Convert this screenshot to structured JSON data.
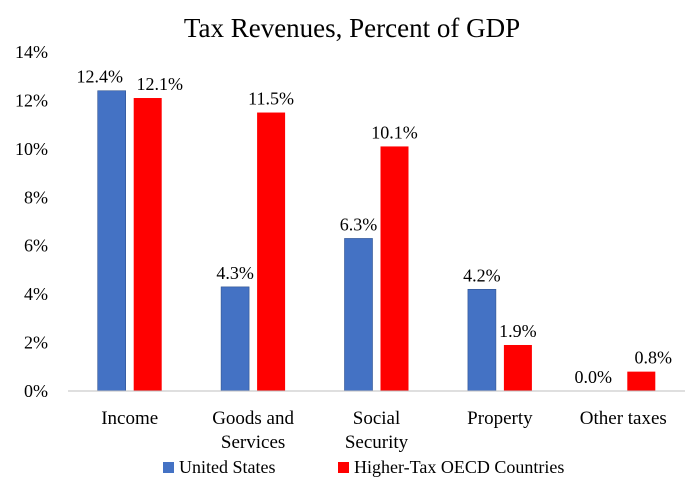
{
  "chart_data": {
    "type": "bar",
    "title": "Tax Revenues, Percent of GDP",
    "xlabel": "",
    "ylabel": "",
    "categories": [
      [
        "Income"
      ],
      [
        "Goods and",
        "Services"
      ],
      [
        "Social",
        "Security"
      ],
      [
        "Property"
      ],
      [
        "Other taxes"
      ]
    ],
    "series": [
      {
        "name": "United States",
        "color": "#4472c4",
        "values": [
          12.4,
          4.3,
          6.3,
          4.2,
          0.0
        ],
        "labels": [
          "12.4%",
          "4.3%",
          "6.3%",
          "4.2%",
          "0.0%"
        ]
      },
      {
        "name": "Higher-Tax OECD Countries",
        "color": "#ff0000",
        "values": [
          12.1,
          11.5,
          10.1,
          1.9,
          0.8
        ],
        "labels": [
          "12.1%",
          "11.5%",
          "10.1%",
          "1.9%",
          "0.8%"
        ]
      }
    ],
    "ylim": [
      0,
      14
    ],
    "yticks": [
      "0%",
      "2%",
      "4%",
      "6%",
      "8%",
      "10%",
      "12%",
      "14%"
    ],
    "grid": false,
    "legend_position": "bottom"
  }
}
